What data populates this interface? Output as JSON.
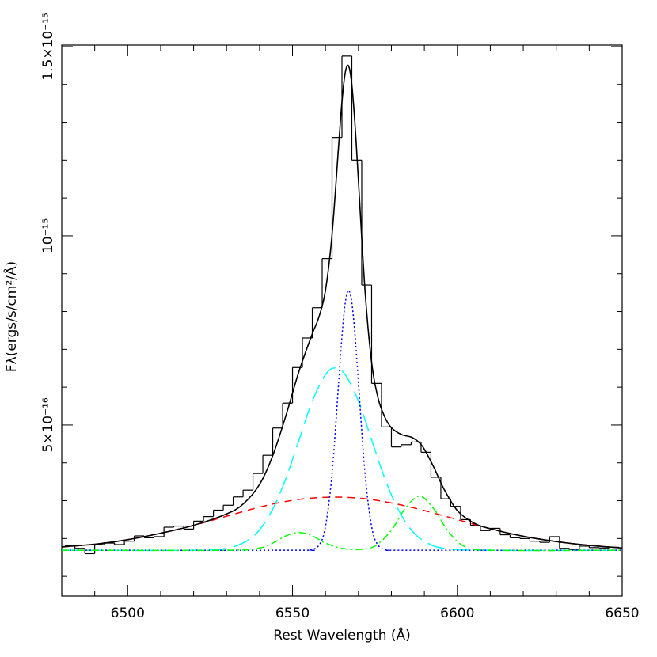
{
  "chart_data": {
    "type": "line",
    "xlabel": "Rest Wavelength (Å)",
    "ylabel": "Fλ(ergs/s/cm²/Å)",
    "xlim": [
      6480,
      6650
    ],
    "ylim": [
      4.8e-17,
      1.504e-15
    ],
    "xticks": [
      6500,
      6550,
      6600,
      6650
    ],
    "xminorticks": [
      6490,
      6510,
      6520,
      6530,
      6540,
      6560,
      6570,
      6580,
      6590,
      6610,
      6620,
      6630,
      6640
    ],
    "yticks": [
      {
        "value": 5e-16,
        "label": "5×10⁻¹⁶"
      },
      {
        "value": 1e-15,
        "label": "10⁻¹⁵"
      },
      {
        "value": 1.5e-15,
        "label": "1.5×10⁻¹⁵"
      }
    ],
    "yminorticks": [
      1e-16,
      2e-16,
      3e-16,
      4e-16,
      6e-16,
      7e-16,
      8e-16,
      9e-16,
      1.1e-15,
      1.2e-15,
      1.3e-15,
      1.4e-15
    ],
    "histogram": {
      "color": "#000000",
      "bins": [
        6481,
        6484,
        6487,
        6490,
        6493,
        6496,
        6499,
        6502,
        6505,
        6508,
        6511,
        6514,
        6517,
        6520,
        6523,
        6526,
        6529,
        6532,
        6535,
        6538,
        6541,
        6544,
        6547,
        6550,
        6553,
        6556,
        6559,
        6562,
        6565,
        6568,
        6571,
        6574,
        6577,
        6580,
        6583,
        6586,
        6589,
        6592,
        6595,
        6598,
        6601,
        6604,
        6607,
        6610,
        6613,
        6616,
        6619,
        6622,
        6625,
        6628,
        6631,
        6634,
        6637,
        6640,
        6643,
        6646,
        6649
      ],
      "counts": [
        1.81e-16,
        1.74e-16,
        1.6e-16,
        1.84e-16,
        1.88e-16,
        1.84e-16,
        1.93e-16,
        2.07e-16,
        2.02e-16,
        2.05e-16,
        2.3e-16,
        2.33e-16,
        2.25e-16,
        2.46e-16,
        2.58e-16,
        2.75e-16,
        2.88e-16,
        3.1e-16,
        3.28e-16,
        3.72e-16,
        4.2e-16,
        4.92e-16,
        5.58e-16,
        6.52e-16,
        7.3e-16,
        8.1e-16,
        9.4e-16,
        1.26e-15,
        1.475e-15,
        1.2e-15,
        8.7e-16,
        6.1e-16,
        4.95e-16,
        4.42e-16,
        4.48e-16,
        4.55e-16,
        4.28e-16,
        3.62e-16,
        3.05e-16,
        2.85e-16,
        2.5e-16,
        2.35e-16,
        2.21e-16,
        2.27e-16,
        2.1e-16,
        2.02e-16,
        2e-16,
        1.93e-16,
        1.9e-16,
        2.05e-16,
        1.74e-16,
        1.71e-16,
        1.8e-16,
        1.76e-16,
        1.75e-16,
        1.77e-16
      ]
    },
    "series": [
      {
        "color": "#ff0000",
        "style": "dashed",
        "x": [
          6480,
          6490,
          6500,
          6510,
          6520,
          6530,
          6540,
          6550,
          6560,
          6570,
          6580,
          6590,
          6600,
          6610,
          6620,
          6630,
          6640,
          6650
        ],
        "values": [
          1.775e-16,
          1.85e-16,
          1.97e-16,
          2.14e-16,
          2.35e-16,
          2.59e-16,
          2.83e-16,
          3.01e-16,
          3.09e-16,
          3.07e-16,
          2.94e-16,
          2.74e-16,
          2.5e-16,
          2.26e-16,
          2.06e-16,
          1.92e-16,
          1.82e-16,
          1.75e-16
        ]
      },
      {
        "color": "#00ffff",
        "style": "longdash",
        "x": [
          6480,
          6520,
          6530,
          6536,
          6540,
          6544,
          6548,
          6552,
          6556,
          6560,
          6563,
          6566,
          6570,
          6574,
          6578,
          6582,
          6586,
          6590,
          6596,
          6610,
          6650
        ],
        "values": [
          1.69e-16,
          1.69e-16,
          1.74e-16,
          1.93e-16,
          2.23e-16,
          2.78e-16,
          3.59e-16,
          4.61e-16,
          5.63e-16,
          6.33e-16,
          6.51e-16,
          6.33e-16,
          5.63e-16,
          4.61e-16,
          3.59e-16,
          2.78e-16,
          2.23e-16,
          1.93e-16,
          1.74e-16,
          1.69e-16,
          1.69e-16
        ]
      },
      {
        "color": "#0000ff",
        "style": "dotted",
        "x": [
          6480,
          6550,
          6555,
          6558,
          6560,
          6562,
          6564,
          6565,
          6566,
          6567,
          6568,
          6569,
          6570,
          6572,
          6574,
          6576,
          6579,
          6585,
          6650
        ],
        "values": [
          1.69e-16,
          1.69e-16,
          1.7e-16,
          1.82e-16,
          2.32e-16,
          3.72e-16,
          6.12e-16,
          7.34e-16,
          8.23e-16,
          8.56e-16,
          8.23e-16,
          7.34e-16,
          6.12e-16,
          3.72e-16,
          2.32e-16,
          1.82e-16,
          1.7e-16,
          1.69e-16,
          1.69e-16
        ]
      },
      {
        "color": "#00ff00",
        "style": "dashdot",
        "x": [
          6480,
          6530,
          6540,
          6544,
          6548,
          6552,
          6556,
          6560,
          6565,
          6570,
          6575,
          6580,
          6584,
          6588.5,
          6593,
          6597,
          6602,
          6610,
          6650
        ],
        "values": [
          1.69e-16,
          1.69e-16,
          1.75e-16,
          1.88e-16,
          2.07e-16,
          2.16e-16,
          2.07e-16,
          1.88e-16,
          1.74e-16,
          1.71e-16,
          1.8e-16,
          2.22e-16,
          2.77e-16,
          3.12e-16,
          2.77e-16,
          2.22e-16,
          1.8e-16,
          1.69e-16,
          1.69e-16
        ]
      },
      {
        "color": "#000000",
        "style": "solid",
        "x": [
          6480,
          6490,
          6500,
          6510,
          6520,
          6530,
          6535,
          6540,
          6544,
          6548,
          6552,
          6556,
          6558,
          6560,
          6562,
          6564,
          6565,
          6566,
          6567,
          6568,
          6569,
          6570,
          6572,
          6574,
          6576,
          6578,
          6580,
          6583,
          6586,
          6588,
          6590,
          6593,
          6596,
          6600,
          6605,
          6610,
          6620,
          6630,
          6640,
          6650
        ],
        "values": [
          1.78e-16,
          1.85e-16,
          1.97e-16,
          2.14e-16,
          2.35e-16,
          2.65e-16,
          2.91e-16,
          3.43e-16,
          4.19e-16,
          5.25e-16,
          6.43e-16,
          7.41e-16,
          7.85e-16,
          8.56e-16,
          1.004e-15,
          1.239e-15,
          1.354e-15,
          1.431e-15,
          1.449e-15,
          1.399e-15,
          1.289e-15,
          1.146e-15,
          8.56e-16,
          6.66e-16,
          5.7e-16,
          5.21e-16,
          4.93e-16,
          4.75e-16,
          4.68e-16,
          4.57e-16,
          4.36e-16,
          3.86e-16,
          3.3e-16,
          2.74e-16,
          2.41e-16,
          2.26e-16,
          2.06e-16,
          1.92e-16,
          1.82e-16,
          1.75e-16
        ]
      }
    ]
  }
}
